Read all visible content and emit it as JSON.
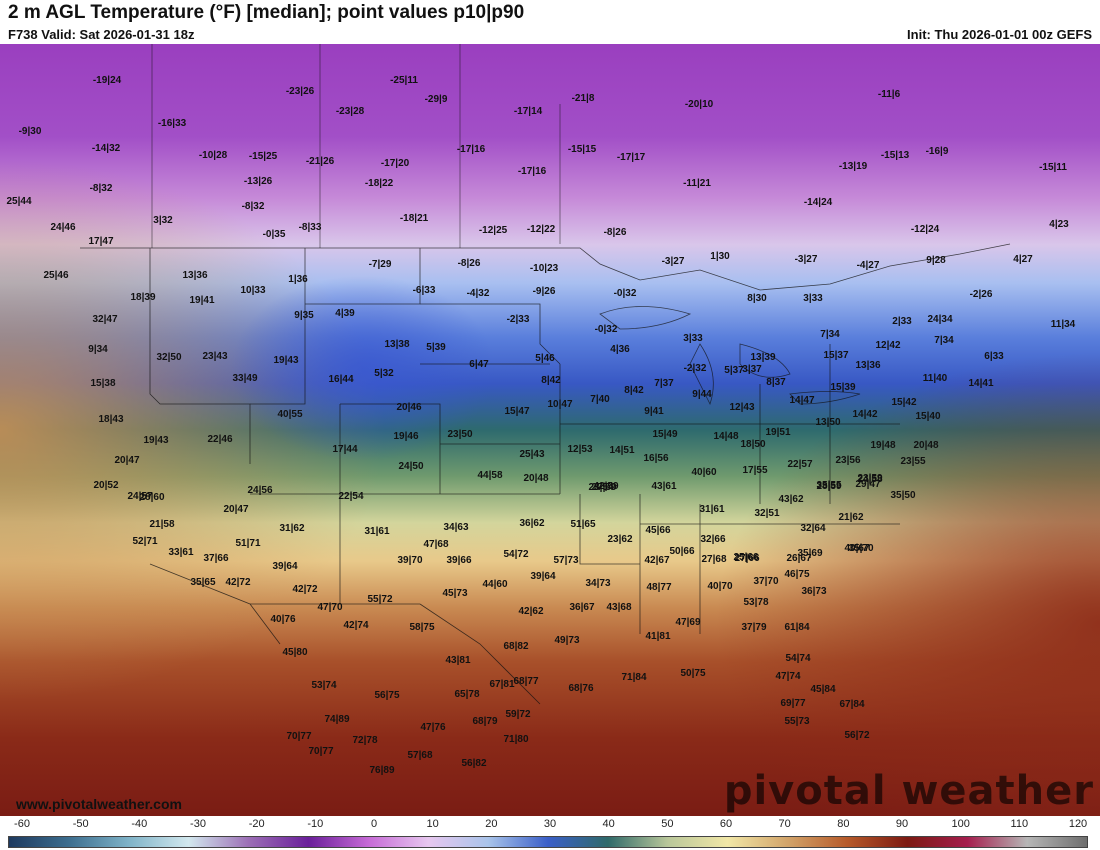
{
  "header": {
    "title": "2 m AGL Temperature (°F) [median]; point values p10|p90",
    "valid": "F738 Valid: Sat 2026-01-31 18z",
    "init": "Init: Thu 2026-01-01 00z GEFS"
  },
  "watermark": {
    "brand": "pivotal weather",
    "site": "www.pivotalweather.com"
  },
  "legend": {
    "ticks": [
      "-60",
      "-50",
      "-40",
      "-30",
      "-20",
      "-10",
      "0",
      "10",
      "20",
      "30",
      "40",
      "50",
      "60",
      "70",
      "80",
      "90",
      "100",
      "110",
      "120"
    ],
    "colors": [
      "#1e3a5f",
      "#3d6e8f",
      "#7fb3c8",
      "#d2e8ee",
      "#9c6fb6",
      "#6a1f9a",
      "#c66ad6",
      "#e7c7ef",
      "#a9c4ea",
      "#3a5fc8",
      "#2f6a6a",
      "#b9c79a",
      "#f1e7a7",
      "#d2a46a",
      "#b65a2a",
      "#7c1a12",
      "#a51e4e",
      "#b6b6b6",
      "#6e6e6e"
    ]
  },
  "point_values": [
    "-19|24",
    "-23|26",
    "-25|11",
    "-29|9",
    "-21|8",
    "-20|10",
    "-11|6",
    "-9|30",
    "-16|33",
    "-23|28",
    "-17|14",
    "-14|32",
    "-10|28",
    "-15|25",
    "-21|26",
    "-17|20",
    "-17|16",
    "-15|15",
    "-17|17",
    "-13|19",
    "-15|13",
    "-16|9",
    "-15|11",
    "-8|32",
    "-13|26",
    "-18|22",
    "-17|16",
    "-11|21",
    "25|44",
    "-8|32",
    "3|32",
    "-0|35",
    "-8|33",
    "-18|21",
    "-12|25",
    "-12|22",
    "-8|26",
    "-14|24",
    "-12|24",
    "4|23",
    "24|46",
    "17|47",
    "-7|29",
    "-8|26",
    "-10|23",
    "-3|27",
    "1|30",
    "-3|27",
    "-4|27",
    "9|28",
    "4|27",
    "13|36",
    "1|36",
    "-6|33",
    "-4|32",
    "-9|26",
    "-0|32",
    "-2|26",
    "25|46",
    "18|39",
    "19|41",
    "10|33",
    "9|35",
    "4|39",
    "-2|33",
    "8|30",
    "3|33",
    "2|33",
    "24|34",
    "32|47",
    "-0|32",
    "3|33",
    "7|34",
    "11|34",
    "9|34",
    "32|50",
    "23|43",
    "19|43",
    "13|38",
    "5|39",
    "6|47",
    "5|46",
    "4|36",
    "-2|32",
    "5|37",
    "13|39",
    "15|37",
    "13|36",
    "12|42",
    "7|34",
    "6|33",
    "15|38",
    "33|49",
    "16|44",
    "5|32",
    "8|42",
    "7|40",
    "8|42",
    "7|37",
    "3|37",
    "8|37",
    "15|39",
    "11|40",
    "14|41",
    "18|43",
    "40|55",
    "20|46",
    "15|47",
    "10|47",
    "9|41",
    "9|44",
    "12|43",
    "14|47",
    "14|42",
    "15|42",
    "15|40",
    "19|43",
    "22|46",
    "19|46",
    "23|50",
    "15|49",
    "14|48",
    "13|50",
    "17|44",
    "25|43",
    "12|53",
    "14|51",
    "18|50",
    "19|51",
    "19|48",
    "20|48",
    "20|47",
    "24|50",
    "44|58",
    "20|48",
    "16|56",
    "17|55",
    "22|57",
    "23|56",
    "23|55",
    "20|52",
    "23|54",
    "42|59",
    "35|55",
    "29|47",
    "23|59",
    "24|57",
    "24|56",
    "22|54",
    "27|59",
    "43|61",
    "40|60",
    "28|59",
    "24|58",
    "28|60",
    "20|47",
    "31|61",
    "43|62",
    "32|51",
    "35|50",
    "21|62",
    "21|58",
    "31|62",
    "31|61",
    "34|63",
    "36|62",
    "51|65",
    "45|66",
    "23|62",
    "32|64",
    "52|71",
    "51|71",
    "47|68",
    "32|66",
    "25|66",
    "26|67",
    "35|70",
    "33|61",
    "37|66",
    "39|64",
    "39|70",
    "39|66",
    "54|72",
    "57|73",
    "50|66",
    "27|68",
    "27|66",
    "35|69",
    "40|67",
    "35|65",
    "42|72",
    "42|72",
    "45|73",
    "44|60",
    "39|64",
    "34|73",
    "42|67",
    "40|70",
    "37|70",
    "46|75",
    "47|70",
    "55|72",
    "42|62",
    "36|67",
    "43|68",
    "48|77",
    "53|78",
    "36|73",
    "40|76",
    "42|74",
    "58|75",
    "47|69",
    "37|79",
    "61|84",
    "68|82",
    "49|73",
    "41|81",
    "45|80",
    "43|81",
    "54|74",
    "53|74",
    "56|75",
    "65|78",
    "67|81",
    "68|77",
    "68|76",
    "71|84",
    "50|75",
    "47|74",
    "45|84",
    "69|77",
    "67|84",
    "74|89",
    "47|76",
    "68|79",
    "59|72",
    "55|73",
    "70|77",
    "72|78",
    "71|80",
    "70|77",
    "57|68",
    "56|82",
    "76|89",
    "56|72"
  ]
}
